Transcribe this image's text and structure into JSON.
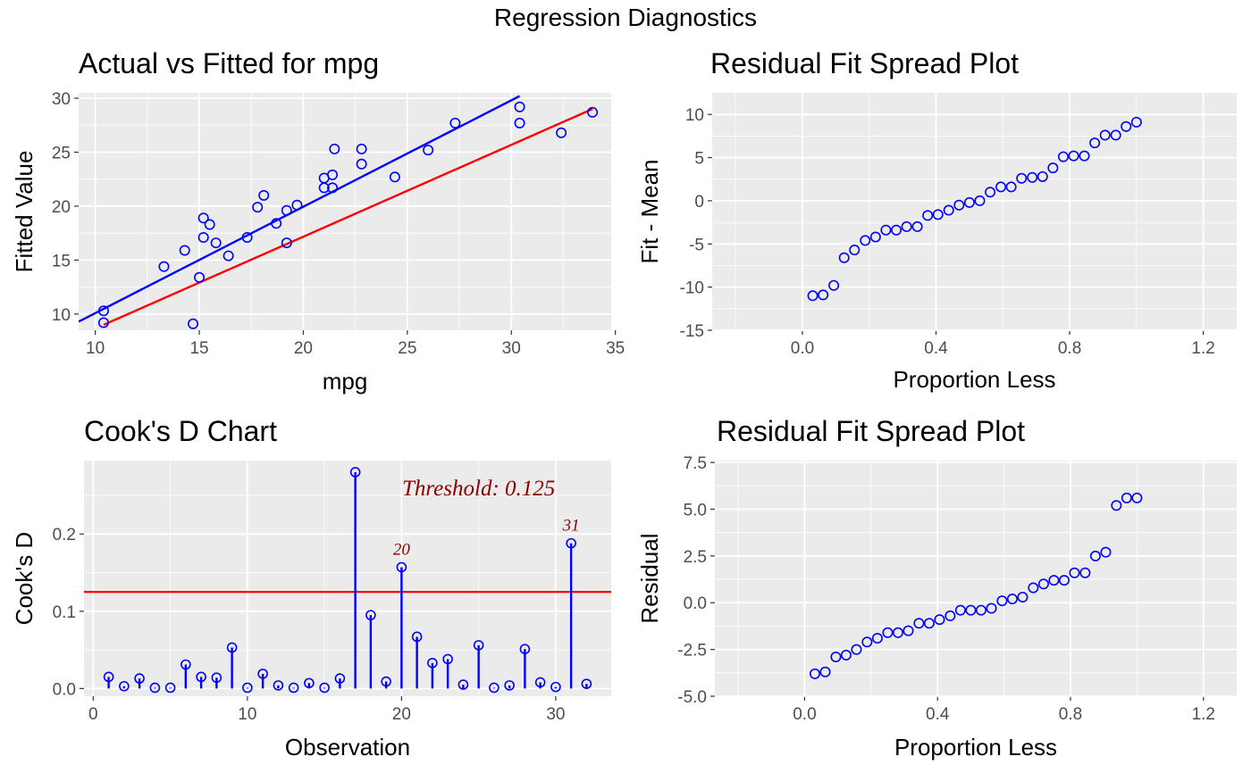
{
  "page": {
    "title": "Regression Diagnostics"
  },
  "colors": {
    "panel_bg": "#ebebeb",
    "grid_major": "#ffffff",
    "points": "#0000ff",
    "ref_line": "#ff0000",
    "annotation": "#8b0000",
    "tick_text": "#4d4d4d"
  },
  "chart_data": [
    {
      "id": "avf",
      "type": "scatter",
      "title": "Actual vs Fitted for mpg",
      "xlabel": "mpg",
      "ylabel": "Fitted Value",
      "xlim": [
        9.2,
        34.8
      ],
      "ylim": [
        8.5,
        30.5
      ],
      "xticks": [
        10,
        15,
        20,
        25,
        30,
        35
      ],
      "yticks": [
        10,
        15,
        20,
        25,
        30
      ],
      "grid": true,
      "points": [
        [
          10.4,
          10.3
        ],
        [
          10.4,
          9.2
        ],
        [
          13.3,
          14.4
        ],
        [
          14.3,
          15.9
        ],
        [
          14.7,
          9.1
        ],
        [
          15.0,
          13.4
        ],
        [
          15.2,
          17.1
        ],
        [
          15.2,
          18.9
        ],
        [
          15.5,
          18.3
        ],
        [
          15.8,
          16.6
        ],
        [
          16.4,
          15.4
        ],
        [
          17.3,
          17.1
        ],
        [
          17.8,
          19.9
        ],
        [
          18.1,
          21.0
        ],
        [
          18.7,
          18.4
        ],
        [
          19.2,
          19.6
        ],
        [
          19.2,
          16.6
        ],
        [
          19.7,
          20.1
        ],
        [
          21.0,
          22.6
        ],
        [
          21.0,
          21.7
        ],
        [
          21.4,
          22.9
        ],
        [
          21.4,
          21.7
        ],
        [
          21.5,
          25.3
        ],
        [
          22.8,
          25.3
        ],
        [
          22.8,
          23.9
        ],
        [
          24.4,
          22.7
        ],
        [
          26.0,
          25.2
        ],
        [
          27.3,
          27.7
        ],
        [
          30.4,
          29.2
        ],
        [
          30.4,
          27.7
        ],
        [
          32.4,
          26.8
        ],
        [
          33.9,
          28.7
        ]
      ],
      "lines": [
        {
          "name": "fit",
          "color": "#0000ff",
          "x": [
            9.2,
            30.4
          ],
          "y": [
            9.3,
            30.2
          ]
        },
        {
          "name": "identity",
          "color": "#ff0000",
          "x": [
            10.4,
            33.9
          ],
          "y": [
            9.0,
            29.0
          ]
        }
      ]
    },
    {
      "id": "rfs-fit",
      "type": "scatter",
      "title": "Residual Fit Spread Plot",
      "xlabel": "Proportion Less",
      "ylabel": "Fit - Mean",
      "xlim": [
        -0.27,
        1.3
      ],
      "ylim": [
        -15,
        12.5
      ],
      "xticks": [
        0.0,
        0.4,
        0.8,
        1.2
      ],
      "xtick_labels": [
        "0.0",
        "0.4",
        "0.8",
        "1.2"
      ],
      "yticks": [
        -15,
        -10,
        -5,
        0,
        5,
        10
      ],
      "grid": true,
      "points": [
        [
          0.031,
          -11.0
        ],
        [
          0.062,
          -10.9
        ],
        [
          0.094,
          -9.8
        ],
        [
          0.125,
          -6.6
        ],
        [
          0.156,
          -5.7
        ],
        [
          0.188,
          -4.6
        ],
        [
          0.219,
          -4.2
        ],
        [
          0.25,
          -3.4
        ],
        [
          0.281,
          -3.4
        ],
        [
          0.312,
          -3.0
        ],
        [
          0.344,
          -3.0
        ],
        [
          0.375,
          -1.7
        ],
        [
          0.406,
          -1.6
        ],
        [
          0.438,
          -1.1
        ],
        [
          0.469,
          -0.5
        ],
        [
          0.5,
          -0.2
        ],
        [
          0.531,
          0.0
        ],
        [
          0.562,
          1.0
        ],
        [
          0.594,
          1.6
        ],
        [
          0.625,
          1.6
        ],
        [
          0.656,
          2.6
        ],
        [
          0.688,
          2.7
        ],
        [
          0.719,
          2.8
        ],
        [
          0.75,
          3.8
        ],
        [
          0.781,
          5.1
        ],
        [
          0.812,
          5.2
        ],
        [
          0.844,
          5.2
        ],
        [
          0.875,
          6.7
        ],
        [
          0.906,
          7.6
        ],
        [
          0.938,
          7.6
        ],
        [
          0.969,
          8.6
        ],
        [
          1.0,
          9.1
        ]
      ]
    },
    {
      "id": "cooks",
      "type": "bar",
      "title": "Cook's D Chart",
      "xlabel": "Observation",
      "ylabel": "Cook's D",
      "xlim": [
        -0.6,
        33.6
      ],
      "ylim": [
        -0.01,
        0.295
      ],
      "xticks": [
        0,
        10,
        20,
        30
      ],
      "yticks": [
        0.0,
        0.1,
        0.2
      ],
      "ytick_labels": [
        "0.0",
        "0.1",
        "0.2"
      ],
      "grid": true,
      "threshold": 0.125,
      "threshold_label": "Threshold: 0.125",
      "labeled_points": [
        {
          "x": 20,
          "label": "20"
        },
        {
          "x": 31,
          "label": "31"
        }
      ],
      "x": [
        1,
        2,
        3,
        4,
        5,
        6,
        7,
        8,
        9,
        10,
        11,
        12,
        13,
        14,
        15,
        16,
        17,
        18,
        19,
        20,
        21,
        22,
        23,
        24,
        25,
        26,
        27,
        28,
        29,
        30,
        31,
        32
      ],
      "values": [
        0.015,
        0.003,
        0.013,
        0.001,
        0.001,
        0.031,
        0.015,
        0.014,
        0.053,
        0.001,
        0.019,
        0.004,
        0.001,
        0.007,
        0.001,
        0.013,
        0.28,
        0.095,
        0.009,
        0.157,
        0.067,
        0.033,
        0.038,
        0.005,
        0.056,
        0.001,
        0.004,
        0.051,
        0.008,
        0.002,
        0.188,
        0.006
      ]
    },
    {
      "id": "rfs-res",
      "type": "scatter",
      "title": "Residual Fit Spread Plot",
      "xlabel": "Proportion Less",
      "ylabel": "Residual",
      "xlim": [
        -0.27,
        1.3
      ],
      "ylim": [
        -5.0,
        7.6
      ],
      "xticks": [
        0.0,
        0.4,
        0.8,
        1.2
      ],
      "xtick_labels": [
        "0.0",
        "0.4",
        "0.8",
        "1.2"
      ],
      "yticks": [
        -5.0,
        -2.5,
        0.0,
        2.5,
        5.0,
        7.5
      ],
      "ytick_labels": [
        "-5.0",
        "-2.5",
        "0.0",
        "2.5",
        "5.0",
        "7.5"
      ],
      "grid": true,
      "points": [
        [
          0.031,
          -3.8
        ],
        [
          0.062,
          -3.7
        ],
        [
          0.094,
          -2.9
        ],
        [
          0.125,
          -2.8
        ],
        [
          0.156,
          -2.5
        ],
        [
          0.188,
          -2.1
        ],
        [
          0.219,
          -1.9
        ],
        [
          0.25,
          -1.6
        ],
        [
          0.281,
          -1.6
        ],
        [
          0.312,
          -1.5
        ],
        [
          0.344,
          -1.1
        ],
        [
          0.375,
          -1.1
        ],
        [
          0.406,
          -0.9
        ],
        [
          0.438,
          -0.7
        ],
        [
          0.469,
          -0.4
        ],
        [
          0.5,
          -0.4
        ],
        [
          0.531,
          -0.4
        ],
        [
          0.562,
          -0.3
        ],
        [
          0.594,
          0.1
        ],
        [
          0.625,
          0.2
        ],
        [
          0.656,
          0.3
        ],
        [
          0.688,
          0.8
        ],
        [
          0.719,
          1.0
        ],
        [
          0.75,
          1.2
        ],
        [
          0.781,
          1.2
        ],
        [
          0.812,
          1.6
        ],
        [
          0.844,
          1.6
        ],
        [
          0.875,
          2.5
        ],
        [
          0.906,
          2.7
        ],
        [
          0.938,
          5.2
        ],
        [
          0.969,
          5.6
        ],
        [
          1.0,
          5.6
        ]
      ]
    }
  ]
}
